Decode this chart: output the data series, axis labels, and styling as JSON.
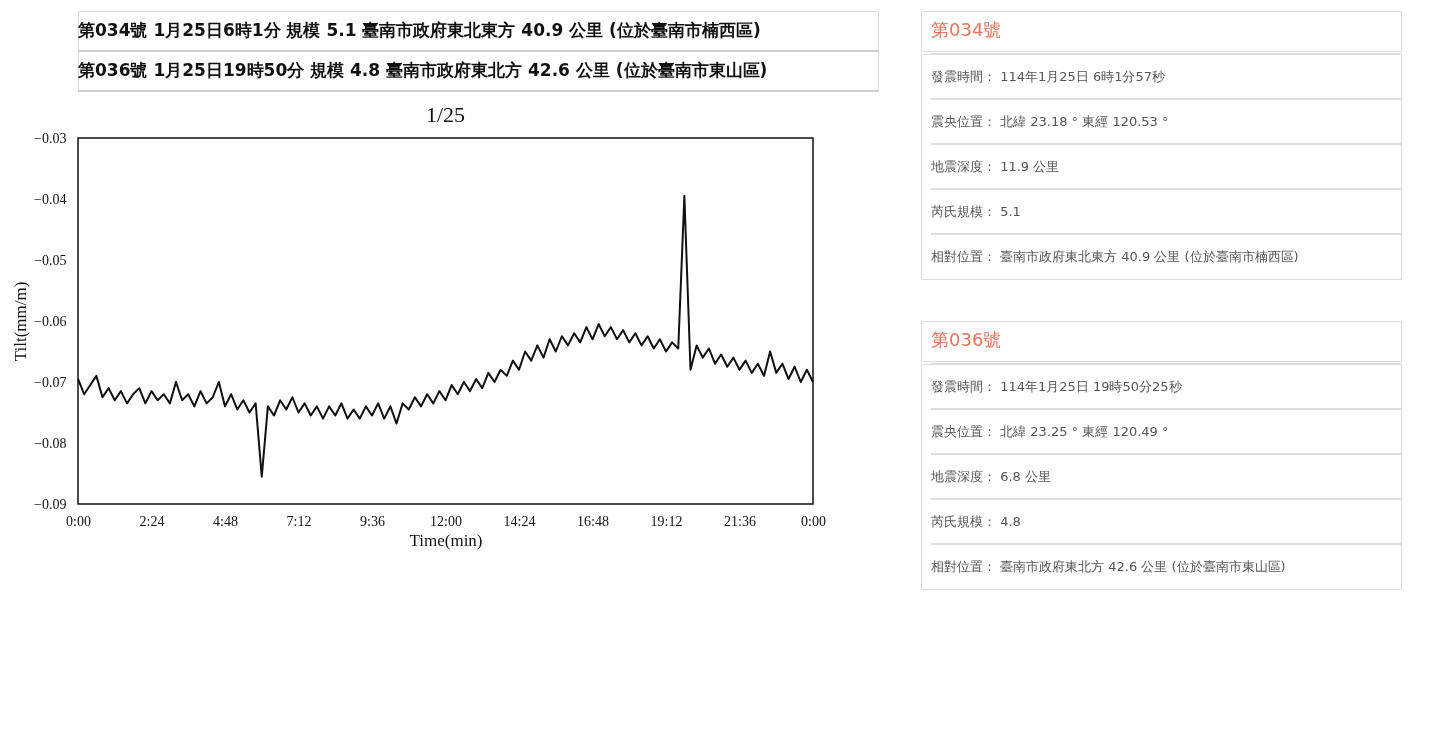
{
  "chart_data": [
    {
      "type": "line",
      "title": "1/25",
      "xlabel": "Time(min)",
      "ylabel": "Tilt(mm/m)",
      "color": "#111111",
      "annotations": [
        "第034號 1月25日6時1分 規模 5.1 臺南市政府東北東方 40.9 公里 (位於臺南市楠西區)",
        "第036號 1月25日19時50分 規模 4.8 臺南市政府東北方 42.6 公里 (位於臺南市東山區)"
      ],
      "xlim": [
        0,
        24
      ],
      "ylim": [
        -0.09,
        -0.03
      ],
      "xticks": [
        {
          "value": 0,
          "label": "0:00"
        },
        {
          "value": 2.4,
          "label": "2:24"
        },
        {
          "value": 4.8,
          "label": "4:48"
        },
        {
          "value": 7.2,
          "label": "7:12"
        },
        {
          "value": 9.6,
          "label": "9:36"
        },
        {
          "value": 12,
          "label": "12:00"
        },
        {
          "value": 14.4,
          "label": "14:24"
        },
        {
          "value": 16.8,
          "label": "16:48"
        },
        {
          "value": 19.2,
          "label": "19:12"
        },
        {
          "value": 21.6,
          "label": "21:36"
        },
        {
          "value": 24,
          "label": "0:00"
        }
      ],
      "yticks": [
        -0.09,
        -0.08,
        -0.07,
        -0.06,
        -0.05,
        -0.04,
        -0.03
      ],
      "x": [
        0.0,
        0.2,
        0.4,
        0.6,
        0.8,
        1.0,
        1.2,
        1.4,
        1.6,
        1.8,
        2.0,
        2.2,
        2.4,
        2.6,
        2.8,
        3.0,
        3.2,
        3.4,
        3.6,
        3.8,
        4.0,
        4.2,
        4.4,
        4.6,
        4.8,
        5.0,
        5.2,
        5.4,
        5.6,
        5.8,
        6.0,
        6.2,
        6.4,
        6.6,
        6.8,
        7.0,
        7.2,
        7.4,
        7.6,
        7.8,
        8.0,
        8.2,
        8.4,
        8.6,
        8.8,
        9.0,
        9.2,
        9.4,
        9.6,
        9.8,
        10.0,
        10.2,
        10.4,
        10.6,
        10.8,
        11.0,
        11.2,
        11.4,
        11.6,
        11.8,
        12.0,
        12.2,
        12.4,
        12.6,
        12.8,
        13.0,
        13.2,
        13.4,
        13.6,
        13.8,
        14.0,
        14.2,
        14.4,
        14.6,
        14.8,
        15.0,
        15.2,
        15.4,
        15.6,
        15.8,
        16.0,
        16.2,
        16.4,
        16.6,
        16.8,
        17.0,
        17.2,
        17.4,
        17.6,
        17.8,
        18.0,
        18.2,
        18.4,
        18.6,
        18.8,
        19.0,
        19.2,
        19.4,
        19.6,
        19.8,
        20.0,
        20.2,
        20.4,
        20.6,
        20.8,
        21.0,
        21.2,
        21.4,
        21.6,
        21.8,
        22.0,
        22.2,
        22.4,
        22.6,
        22.8,
        23.0,
        23.2,
        23.4,
        23.6,
        23.8,
        24.0
      ],
      "values": [
        -0.0695,
        -0.072,
        -0.0705,
        -0.069,
        -0.0725,
        -0.071,
        -0.073,
        -0.0715,
        -0.0735,
        -0.072,
        -0.071,
        -0.0735,
        -0.0715,
        -0.073,
        -0.072,
        -0.0735,
        -0.07,
        -0.073,
        -0.072,
        -0.074,
        -0.0715,
        -0.0735,
        -0.0725,
        -0.07,
        -0.074,
        -0.072,
        -0.0745,
        -0.073,
        -0.075,
        -0.0735,
        -0.0855,
        -0.074,
        -0.0755,
        -0.073,
        -0.0745,
        -0.0725,
        -0.075,
        -0.0735,
        -0.0755,
        -0.074,
        -0.076,
        -0.074,
        -0.0755,
        -0.0735,
        -0.076,
        -0.0745,
        -0.076,
        -0.074,
        -0.0755,
        -0.0735,
        -0.076,
        -0.074,
        -0.0768,
        -0.0735,
        -0.0745,
        -0.0725,
        -0.074,
        -0.072,
        -0.0735,
        -0.0715,
        -0.073,
        -0.0705,
        -0.072,
        -0.07,
        -0.0715,
        -0.0695,
        -0.071,
        -0.0685,
        -0.07,
        -0.068,
        -0.069,
        -0.0665,
        -0.068,
        -0.065,
        -0.0665,
        -0.064,
        -0.066,
        -0.063,
        -0.065,
        -0.0625,
        -0.064,
        -0.062,
        -0.0635,
        -0.061,
        -0.063,
        -0.0605,
        -0.0625,
        -0.061,
        -0.063,
        -0.0615,
        -0.0635,
        -0.062,
        -0.064,
        -0.0625,
        -0.0645,
        -0.063,
        -0.065,
        -0.0635,
        -0.0645,
        -0.0395,
        -0.068,
        -0.064,
        -0.066,
        -0.0645,
        -0.067,
        -0.0655,
        -0.0675,
        -0.066,
        -0.068,
        -0.0665,
        -0.0685,
        -0.067,
        -0.069,
        -0.065,
        -0.0685,
        -0.067,
        -0.0695,
        -0.0675,
        -0.07,
        -0.068,
        -0.07
      ]
    },
    {
      "type": "other",
      "title": "第034號",
      "annotations": [
        "發震時間： 114年1月25日 6時1分57秒",
        "震央位置： 北緯 23.18 ° 東經 120.53 °",
        "地震深度： 11.9 公里",
        "芮氏規模： 5.1",
        "相對位置： 臺南市政府東北東方 40.9 公里 (位於臺南市楠西區)"
      ]
    },
    {
      "type": "other",
      "title": "第036號",
      "annotations": [
        "發震時間： 114年1月25日 19時50分25秒",
        "震央位置： 北緯 23.25 ° 東經 120.49 °",
        "地震深度： 6.8 公里",
        "芮氏規模： 4.8",
        "相對位置： 臺南市政府東北方 42.6 公里 (位於臺南市東山區)"
      ]
    }
  ]
}
